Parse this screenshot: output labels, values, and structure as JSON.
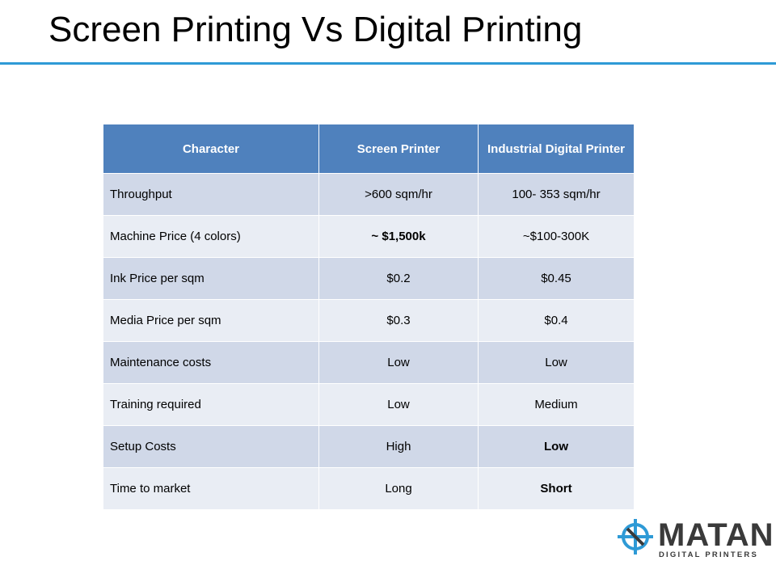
{
  "header": {
    "title": "Screen Printing Vs Digital Printing"
  },
  "table": {
    "header": [
      "Character",
      "Screen Printer",
      "Industrial Digital Printer"
    ],
    "rows": [
      [
        "Throughput",
        ">600 sqm/hr",
        "100- 353 sqm/hr"
      ],
      [
        "Machine Price (4 colors)",
        "~ $1,500k",
        "~$100-300K"
      ],
      [
        "Ink Price per sqm",
        "$0.2",
        "$0.45"
      ],
      [
        "Media Price per sqm",
        "$0.3",
        "$0.4"
      ],
      [
        "Maintenance costs",
        "Low",
        "Low"
      ],
      [
        "Training required",
        "Low",
        "Medium"
      ],
      [
        "Setup Costs",
        "High",
        "Low"
      ],
      [
        "Time to market",
        "Long",
        "Short"
      ]
    ]
  },
  "logo": {
    "name": "MATAN",
    "tagline": "DIGITAL PRINTERS"
  }
}
